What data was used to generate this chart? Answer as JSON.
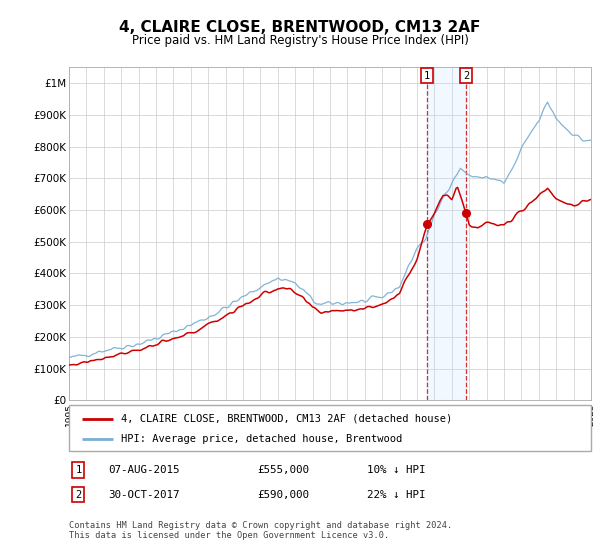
{
  "title": "4, CLAIRE CLOSE, BRENTWOOD, CM13 2AF",
  "subtitle": "Price paid vs. HM Land Registry's House Price Index (HPI)",
  "legend_label_red": "4, CLAIRE CLOSE, BRENTWOOD, CM13 2AF (detached house)",
  "legend_label_blue": "HPI: Average price, detached house, Brentwood",
  "marker1_date": 2015.58,
  "marker1_price": 555000,
  "marker2_date": 2017.83,
  "marker2_price": 590000,
  "ylim_max": 1050000,
  "ylim_min": 0,
  "xlim_min": 1995.0,
  "xlim_max": 2025.0,
  "red_color": "#cc0000",
  "blue_color": "#7ab0d4",
  "shade_color": "#ddeeff",
  "grid_color": "#cccccc",
  "footer_text": "Contains HM Land Registry data © Crown copyright and database right 2024.\nThis data is licensed under the Open Government Licence v3.0.",
  "ytick_labels": [
    "£0",
    "£100K",
    "£200K",
    "£300K",
    "£400K",
    "£500K",
    "£600K",
    "£700K",
    "£800K",
    "£900K",
    "£1M"
  ],
  "yticks": [
    0,
    100000,
    200000,
    300000,
    400000,
    500000,
    600000,
    700000,
    800000,
    900000,
    1000000
  ],
  "ref_years_hpi": [
    1995,
    1996,
    1997,
    1998,
    1999,
    2000,
    2001,
    2002,
    2003,
    2004,
    2005,
    2006,
    2007,
    2007.8,
    2008.5,
    2009,
    2009.5,
    2010,
    2011,
    2012,
    2013,
    2014,
    2015,
    2015.5,
    2016,
    2016.5,
    2017,
    2017.5,
    2018,
    2018.5,
    2019,
    2020,
    2020.5,
    2021,
    2021.5,
    2022,
    2022.5,
    2023,
    2023.5,
    2024,
    2024.5,
    2025
  ],
  "ref_vals_hpi": [
    132,
    145,
    158,
    168,
    178,
    195,
    215,
    238,
    262,
    292,
    325,
    358,
    385,
    375,
    345,
    315,
    300,
    305,
    308,
    312,
    325,
    360,
    480,
    510,
    580,
    640,
    690,
    730,
    710,
    700,
    705,
    685,
    730,
    790,
    840,
    880,
    940,
    890,
    860,
    840,
    820,
    820
  ],
  "ref_years_pp": [
    1995,
    1996,
    1997,
    1998,
    1999,
    2000,
    2001,
    2002,
    2003,
    2004,
    2005,
    2006,
    2007,
    2007.8,
    2008.5,
    2009,
    2009.5,
    2010,
    2011,
    2012,
    2013,
    2014,
    2015,
    2015.58,
    2016,
    2016.5,
    2017,
    2017.3,
    2017.83,
    2018,
    2018.5,
    2019,
    2020,
    2021,
    2022,
    2022.5,
    2023,
    2023.5,
    2024,
    2024.5,
    2025
  ],
  "ref_vals_pp": [
    110,
    122,
    135,
    148,
    160,
    175,
    192,
    212,
    238,
    268,
    298,
    330,
    355,
    345,
    318,
    290,
    278,
    282,
    286,
    290,
    302,
    338,
    448,
    555,
    595,
    645,
    635,
    680,
    590,
    555,
    545,
    560,
    548,
    600,
    645,
    670,
    635,
    625,
    615,
    625,
    625
  ]
}
